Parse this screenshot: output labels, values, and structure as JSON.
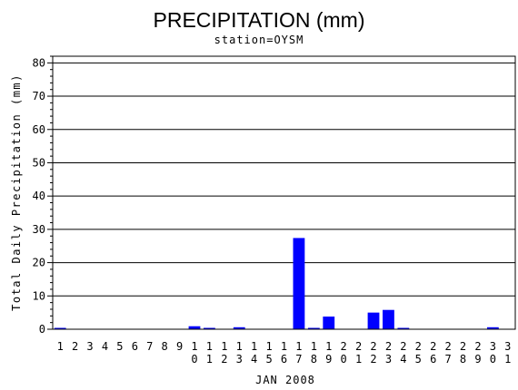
{
  "chart_data": {
    "type": "bar",
    "title": "PRECIPITATION (mm)",
    "subtitle": "station=OYSM",
    "xlabel": "JAN 2008",
    "ylabel": "Total Daily Precipitation (mm)",
    "ylim": [
      0,
      82
    ],
    "yticks": [
      0,
      10,
      20,
      30,
      40,
      50,
      60,
      70,
      80
    ],
    "grid": true,
    "bar_color": "#0000ff",
    "categories": [
      "1",
      "2",
      "3",
      "4",
      "5",
      "6",
      "7",
      "8",
      "9",
      "10",
      "11",
      "12",
      "13",
      "14",
      "15",
      "16",
      "17",
      "18",
      "19",
      "20",
      "21",
      "22",
      "23",
      "24",
      "25",
      "26",
      "27",
      "28",
      "29",
      "30",
      "31"
    ],
    "values": [
      0.3,
      0,
      0,
      0,
      0,
      0,
      0,
      0,
      0,
      0.9,
      0.3,
      0,
      0.6,
      0,
      0,
      0,
      27.4,
      0.3,
      3.8,
      0,
      0,
      5.0,
      5.8,
      0.2,
      0,
      0,
      0,
      0,
      0,
      0.6,
      0
    ]
  }
}
